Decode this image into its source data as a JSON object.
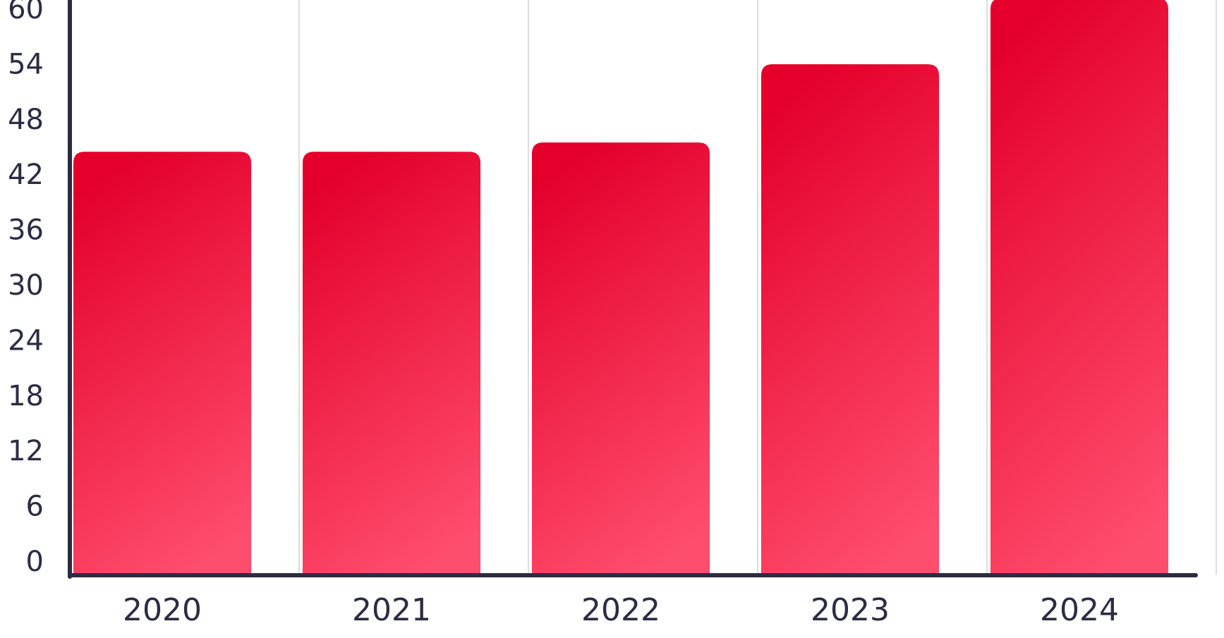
{
  "chart_data": {
    "type": "bar",
    "categories": [
      "2020",
      "2021",
      "2022",
      "2023",
      "2024"
    ],
    "values": [
      45.9,
      45.9,
      46.9,
      55.4,
      62.6
    ],
    "ylim": [
      0,
      60
    ],
    "yticks": [
      "0",
      "6",
      "12",
      "18",
      "24",
      "30",
      "36",
      "42",
      "48",
      "54",
      "60"
    ],
    "title": "",
    "xlabel": "",
    "ylabel": "",
    "grid": "vertical",
    "legend": "none",
    "colors": {
      "bar_top": "#e4002b",
      "bar_bottom": "#ff4d6d",
      "axis": "#2b2c43",
      "grid": "#dddddd",
      "text": "#2b2c43"
    }
  }
}
